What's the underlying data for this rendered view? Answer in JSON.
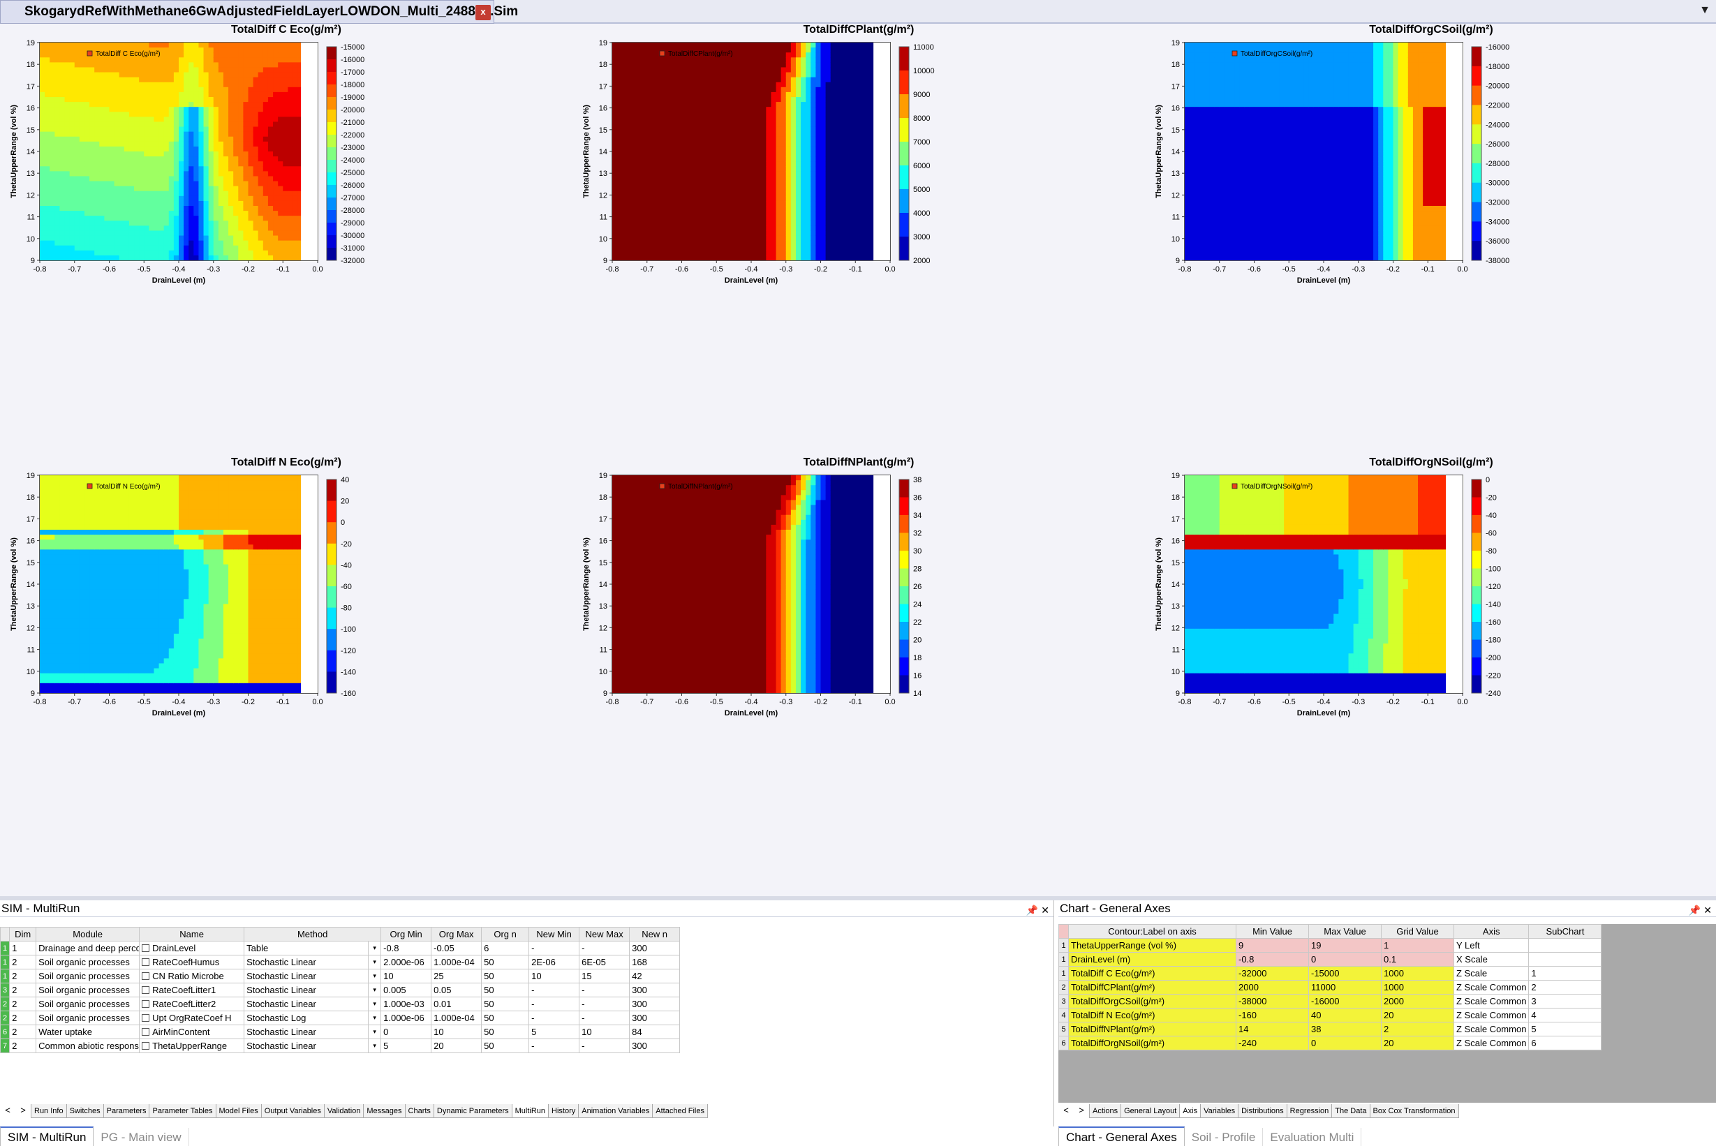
{
  "window": {
    "tab_title": "SkogarydRefWithMethane6GwAdjustedFieldLayerLOWDON_Multi_248869.Sim",
    "close": "x"
  },
  "colors": {
    "accent": "#4a6fd0",
    "highlight_yellow": "#f3f339",
    "highlight_pink": "#f3c6c6",
    "row_green": "#4db84d"
  },
  "chart_data": [
    {
      "type": "heatmap",
      "title": "TotalDiff C Eco(g/m²)",
      "xlabel": "DrainLevel (m)",
      "ylabel": "ThetaUpperRange (vol %)",
      "xlim": [
        -0.8,
        0.0
      ],
      "ylim": [
        9,
        19
      ],
      "x_ticks": [
        "-0.8",
        "-0.7",
        "-0.6",
        "-0.5",
        "-0.4",
        "-0.3",
        "-0.2",
        "-0.1",
        "0.0"
      ],
      "y_ticks": [
        "9",
        "10",
        "11",
        "12",
        "13",
        "14",
        "15",
        "16",
        "17",
        "18",
        "19"
      ],
      "legend_label": "TotalDiff C Eco(g/m²)",
      "zlim": [
        -32000,
        -15000
      ],
      "colorbar_ticks": [
        "-15000",
        "-16000",
        "-17000",
        "-18000",
        "-19000",
        "-20000",
        "-21000",
        "-22000",
        "-23000",
        "-24000",
        "-25000",
        "-26000",
        "-27000",
        "-28000",
        "-29000",
        "-30000",
        "-31000",
        "-32000"
      ],
      "pattern": "ceco"
    },
    {
      "type": "heatmap",
      "title": "TotalDiffCPlant(g/m²)",
      "xlabel": "DrainLevel (m)",
      "ylabel": "ThetaUpperRange (vol %)",
      "xlim": [
        -0.8,
        0.0
      ],
      "ylim": [
        9,
        19
      ],
      "x_ticks": [
        "-0.8",
        "-0.7",
        "-0.6",
        "-0.5",
        "-0.4",
        "-0.3",
        "-0.2",
        "-0.1",
        "0.0"
      ],
      "y_ticks": [
        "9",
        "10",
        "11",
        "12",
        "13",
        "14",
        "15",
        "16",
        "17",
        "18",
        "19"
      ],
      "legend_label": "TotalDiffCPlant(g/m²)",
      "zlim": [
        2000,
        11000
      ],
      "colorbar_ticks": [
        "11000",
        "10000",
        "9000",
        "8000",
        "7000",
        "6000",
        "5000",
        "4000",
        "3000",
        "2000"
      ],
      "pattern": "plant"
    },
    {
      "type": "heatmap",
      "title": "TotalDiffOrgCSoil(g/m²)",
      "xlabel": "DrainLevel (m)",
      "ylabel": "ThetaUpperRange (vol %)",
      "xlim": [
        -0.8,
        0.0
      ],
      "ylim": [
        9,
        19
      ],
      "x_ticks": [
        "-0.8",
        "-0.7",
        "-0.6",
        "-0.5",
        "-0.4",
        "-0.3",
        "-0.2",
        "-0.1",
        "0.0"
      ],
      "y_ticks": [
        "9",
        "10",
        "11",
        "12",
        "13",
        "14",
        "15",
        "16",
        "17",
        "18",
        "19"
      ],
      "legend_label": "TotalDiffOrgCSoil(g/m²)",
      "zlim": [
        -38000,
        -16000
      ],
      "colorbar_ticks": [
        "-16000",
        "-18000",
        "-20000",
        "-22000",
        "-24000",
        "-26000",
        "-28000",
        "-30000",
        "-32000",
        "-34000",
        "-36000",
        "-38000"
      ],
      "pattern": "csoil"
    },
    {
      "type": "heatmap",
      "title": "TotalDiff N Eco(g/m²)",
      "xlabel": "DrainLevel (m)",
      "ylabel": "ThetaUpperRange (vol %)",
      "xlim": [
        -0.8,
        0.0
      ],
      "ylim": [
        9,
        19
      ],
      "x_ticks": [
        "-0.8",
        "-0.7",
        "-0.6",
        "-0.5",
        "-0.4",
        "-0.3",
        "-0.2",
        "-0.1",
        "0.0"
      ],
      "y_ticks": [
        "9",
        "10",
        "11",
        "12",
        "13",
        "14",
        "15",
        "16",
        "17",
        "18",
        "19"
      ],
      "legend_label": "TotalDiff N Eco(g/m²)",
      "zlim": [
        -160,
        40
      ],
      "colorbar_ticks": [
        "40",
        "20",
        "0",
        "-20",
        "-40",
        "-60",
        "-80",
        "-100",
        "-120",
        "-140",
        "-160"
      ],
      "pattern": "neco"
    },
    {
      "type": "heatmap",
      "title": "TotalDiffNPlant(g/m²)",
      "xlabel": "DrainLevel (m)",
      "ylabel": "ThetaUpperRange (vol %)",
      "xlim": [
        -0.8,
        0.0
      ],
      "ylim": [
        9,
        19
      ],
      "x_ticks": [
        "-0.8",
        "-0.7",
        "-0.6",
        "-0.5",
        "-0.4",
        "-0.3",
        "-0.2",
        "-0.1",
        "0.0"
      ],
      "y_ticks": [
        "9",
        "10",
        "11",
        "12",
        "13",
        "14",
        "15",
        "16",
        "17",
        "18",
        "19"
      ],
      "legend_label": "TotalDiffNPlant(g/m²)",
      "zlim": [
        14,
        38
      ],
      "colorbar_ticks": [
        "38",
        "36",
        "34",
        "32",
        "30",
        "28",
        "26",
        "24",
        "22",
        "20",
        "18",
        "16",
        "14"
      ],
      "pattern": "plant"
    },
    {
      "type": "heatmap",
      "title": "TotalDiffOrgNSoil(g/m²)",
      "xlabel": "DrainLevel (m)",
      "ylabel": "ThetaUpperRange (vol %)",
      "xlim": [
        -0.8,
        0.0
      ],
      "ylim": [
        9,
        19
      ],
      "x_ticks": [
        "-0.8",
        "-0.7",
        "-0.6",
        "-0.5",
        "-0.4",
        "-0.3",
        "-0.2",
        "-0.1",
        "0.0"
      ],
      "y_ticks": [
        "9",
        "10",
        "11",
        "12",
        "13",
        "14",
        "15",
        "16",
        "17",
        "18",
        "19"
      ],
      "legend_label": "TotalDiffOrgNSoil(g/m²)",
      "zlim": [
        -240,
        0
      ],
      "colorbar_ticks": [
        "0",
        "-20",
        "-40",
        "-60",
        "-80",
        "-100",
        "-120",
        "-140",
        "-160",
        "-180",
        "-200",
        "-220",
        "-240"
      ],
      "pattern": "nsoil"
    }
  ],
  "multirun": {
    "title": "SIM - MultiRun",
    "headers": [
      "Dim",
      "Module",
      "Name",
      "Method",
      "Org Min",
      "Org Max",
      "Org n",
      "New Min",
      "New Max",
      "New n"
    ],
    "rows": [
      {
        "num": "1",
        "dim": "1",
        "module": "Drainage and deep perco",
        "name": "DrainLevel",
        "method": "Table",
        "org_min": "-0.8",
        "org_max": "-0.05",
        "org_n": "6",
        "new_min": "-",
        "new_max": "-",
        "new_n": "300"
      },
      {
        "num": "1",
        "dim": "2",
        "module": "Soil organic processes",
        "name": "RateCoefHumus",
        "method": "Stochastic Linear",
        "org_min": "2.000e-06",
        "org_max": "1.000e-04",
        "org_n": "50",
        "new_min": "2E-06",
        "new_max": "6E-05",
        "new_n": "168"
      },
      {
        "num": "1",
        "dim": "2",
        "module": "Soil organic processes",
        "name": "CN Ratio Microbe",
        "method": "Stochastic Linear",
        "org_min": "10",
        "org_max": "25",
        "org_n": "50",
        "new_min": "10",
        "new_max": "15",
        "new_n": "42"
      },
      {
        "num": "3",
        "dim": "2",
        "module": "Soil organic processes",
        "name": "RateCoefLitter1",
        "method": "Stochastic Linear",
        "org_min": "0.005",
        "org_max": "0.05",
        "org_n": "50",
        "new_min": "-",
        "new_max": "-",
        "new_n": "300"
      },
      {
        "num": "2",
        "dim": "2",
        "module": "Soil organic processes",
        "name": "RateCoefLitter2",
        "method": "Stochastic Linear",
        "org_min": "1.000e-03",
        "org_max": "0.01",
        "org_n": "50",
        "new_min": "-",
        "new_max": "-",
        "new_n": "300"
      },
      {
        "num": "2",
        "dim": "2",
        "module": "Soil organic processes",
        "name": "Upt OrgRateCoef H",
        "method": "Stochastic Log",
        "org_min": "1.000e-06",
        "org_max": "1.000e-04",
        "org_n": "50",
        "new_min": "-",
        "new_max": "-",
        "new_n": "300"
      },
      {
        "num": "6",
        "dim": "2",
        "module": "Water uptake",
        "name": "AirMinContent",
        "method": "Stochastic Linear",
        "org_min": "0",
        "org_max": "10",
        "org_n": "50",
        "new_min": "5",
        "new_max": "10",
        "new_n": "84"
      },
      {
        "num": "7",
        "dim": "2",
        "module": "Common abiotic respons",
        "name": "ThetaUpperRange",
        "method": "Stochastic Linear",
        "org_min": "5",
        "org_max": "20",
        "org_n": "50",
        "new_min": "-",
        "new_max": "-",
        "new_n": "300"
      }
    ],
    "tabs": [
      "Run Info",
      "Switches",
      "Parameters",
      "Parameter Tables",
      "Model Files",
      "Output Variables",
      "Validation",
      "Messages",
      "Charts",
      "Dynamic Parameters",
      "MultiRun",
      "History",
      "Animation Variables",
      "Attached Files"
    ],
    "active_tab": "MultiRun"
  },
  "axes_panel": {
    "title": "Chart - General Axes",
    "headers": [
      "Contour:Label on axis",
      "Min Value",
      "Max Value",
      "Grid Value",
      "Axis",
      "SubChart"
    ],
    "rows": [
      {
        "num": "1",
        "label": "ThetaUpperRange (vol %)",
        "min": "9",
        "max": "19",
        "grid": "1",
        "axis": "Y Left",
        "sub": "",
        "pink": true
      },
      {
        "num": "1",
        "label": "DrainLevel (m)",
        "min": "-0.8",
        "max": "0",
        "grid": "0.1",
        "axis": "X Scale",
        "sub": "",
        "pink": true
      },
      {
        "num": "1",
        "label": "TotalDiff C Eco(g/m²)",
        "min": "-32000",
        "max": "-15000",
        "grid": "1000",
        "axis": "Z Scale",
        "sub": "1",
        "pink": false
      },
      {
        "num": "2",
        "label": "TotalDiffCPlant(g/m²)",
        "min": "2000",
        "max": "11000",
        "grid": "1000",
        "axis": "Z Scale Common",
        "sub": "2",
        "pink": false
      },
      {
        "num": "3",
        "label": "TotalDiffOrgCSoil(g/m²)",
        "min": "-38000",
        "max": "-16000",
        "grid": "2000",
        "axis": "Z Scale Common",
        "sub": "3",
        "pink": false
      },
      {
        "num": "4",
        "label": "TotalDiff N Eco(g/m²)",
        "min": "-160",
        "max": "40",
        "grid": "20",
        "axis": "Z Scale Common",
        "sub": "4",
        "pink": false
      },
      {
        "num": "5",
        "label": "TotalDiffNPlant(g/m²)",
        "min": "14",
        "max": "38",
        "grid": "2",
        "axis": "Z Scale Common",
        "sub": "5",
        "pink": false
      },
      {
        "num": "6",
        "label": "TotalDiffOrgNSoil(g/m²)",
        "min": "-240",
        "max": "0",
        "grid": "20",
        "axis": "Z Scale Common",
        "sub": "6",
        "pink": false
      }
    ],
    "tabs": [
      "Actions",
      "General Layout",
      "Axis",
      "Variables",
      "Distributions",
      "Regression",
      "The Data",
      "Box Cox Transformation"
    ],
    "active_tab": "Axis"
  },
  "bottom_left_tabs": [
    {
      "label": "SIM - MultiRun",
      "active": true
    },
    {
      "label": "PG - Main view",
      "active": false
    }
  ],
  "bottom_right_tabs": [
    {
      "label": "Chart - General Axes",
      "active": true
    },
    {
      "label": "Soil - Profile",
      "active": false
    },
    {
      "label": "Evaluation Multi",
      "active": false
    }
  ]
}
